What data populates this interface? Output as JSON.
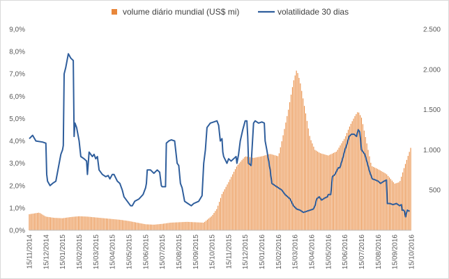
{
  "chart_data": {
    "type": "bar+line",
    "title": "",
    "colors": {
      "volume": "#E8873A",
      "volatility": "#2F5E9C",
      "axis": "#BFBFBF",
      "text": "#595959",
      "frame": "#D9D9D9"
    },
    "legend": {
      "placement": "top-center",
      "entries": [
        "volume diário mundial (US$ mi)",
        "volatilidade 30 dias"
      ]
    },
    "y_left": {
      "label": "",
      "min": 0,
      "max": 9,
      "step": 1,
      "ticks": [
        "0,0%",
        "1,0%",
        "2,0%",
        "3,0%",
        "4,0%",
        "5,0%",
        "6,0%",
        "7,0%",
        "8,0%",
        "9,0%"
      ]
    },
    "y_right": {
      "label": "",
      "min": 0,
      "max": 2500,
      "ticks": [
        500,
        1000,
        1500,
        2000,
        2500
      ],
      "tick_labels": [
        "500",
        "1.000",
        "1.500",
        "2.000",
        "2.500"
      ]
    },
    "x_labels": [
      "15/11/2014",
      "15/12/2014",
      "15/01/2015",
      "15/02/2015",
      "15/03/2015",
      "15/04/2015",
      "15/05/2015",
      "15/06/2015",
      "15/07/2015",
      "15/08/2015",
      "15/09/2015",
      "15/10/2015",
      "15/11/2015",
      "15/12/2015",
      "15/01/2016",
      "15/02/2016",
      "15/03/2016",
      "15/04/2016",
      "15/05/2016",
      "15/06/2016",
      "15/07/2016",
      "15/08/2016",
      "15/09/2016",
      "15/10/2016"
    ],
    "x_range_months": [
      0,
      23
    ],
    "volume_series": {
      "name": "volume diário mundial (US$ mi)",
      "bar_spacing_months": 0.08,
      "points": [
        [
          0,
          200
        ],
        [
          0.3,
          210
        ],
        [
          0.6,
          220
        ],
        [
          1,
          170
        ],
        [
          1.5,
          155
        ],
        [
          2,
          150
        ],
        [
          2.5,
          165
        ],
        [
          3,
          175
        ],
        [
          3.5,
          170
        ],
        [
          4,
          160
        ],
        [
          4.5,
          150
        ],
        [
          5,
          140
        ],
        [
          5.5,
          130
        ],
        [
          6,
          115
        ],
        [
          6.5,
          95
        ],
        [
          7,
          75
        ],
        [
          7.5,
          70
        ],
        [
          8,
          80
        ],
        [
          8.5,
          95
        ],
        [
          9,
          100
        ],
        [
          9.5,
          105
        ],
        [
          10,
          100
        ],
        [
          10.5,
          95
        ],
        [
          11,
          180
        ],
        [
          11.3,
          270
        ],
        [
          11.6,
          450
        ],
        [
          12,
          600
        ],
        [
          12.5,
          800
        ],
        [
          13,
          920
        ],
        [
          13.5,
          900
        ],
        [
          14,
          920
        ],
        [
          14.5,
          950
        ],
        [
          15,
          920
        ],
        [
          15.3,
          1200
        ],
        [
          15.6,
          1500
        ],
        [
          15.9,
          1850
        ],
        [
          16.1,
          2000
        ],
        [
          16.3,
          1850
        ],
        [
          16.6,
          1500
        ],
        [
          16.9,
          1150
        ],
        [
          17.2,
          1000
        ],
        [
          17.5,
          960
        ],
        [
          18,
          930
        ],
        [
          18.5,
          980
        ],
        [
          19,
          1150
        ],
        [
          19.3,
          1300
        ],
        [
          19.6,
          1420
        ],
        [
          19.8,
          1480
        ],
        [
          20,
          1400
        ],
        [
          20.3,
          1100
        ],
        [
          20.6,
          800
        ],
        [
          21,
          760
        ],
        [
          21.5,
          700
        ],
        [
          22,
          580
        ],
        [
          22.3,
          600
        ],
        [
          22.6,
          800
        ],
        [
          23,
          1050
        ]
      ]
    },
    "volatility_series": {
      "name": "volatilidade 30 dias",
      "points": [
        [
          0,
          4.1
        ],
        [
          0.2,
          4.25
        ],
        [
          0.4,
          4.0
        ],
        [
          0.8,
          3.95
        ],
        [
          1.0,
          3.9
        ],
        [
          1.05,
          2.5
        ],
        [
          1.1,
          2.2
        ],
        [
          1.25,
          2.0
        ],
        [
          1.4,
          2.1
        ],
        [
          1.6,
          2.2
        ],
        [
          1.8,
          3.0
        ],
        [
          1.9,
          3.4
        ],
        [
          2.0,
          3.6
        ],
        [
          2.05,
          3.8
        ],
        [
          2.1,
          7.0
        ],
        [
          2.2,
          7.3
        ],
        [
          2.35,
          7.9
        ],
        [
          2.5,
          7.7
        ],
        [
          2.65,
          7.6
        ],
        [
          2.7,
          4.2
        ],
        [
          2.75,
          4.8
        ],
        [
          2.85,
          4.6
        ],
        [
          3.0,
          4.0
        ],
        [
          3.1,
          3.3
        ],
        [
          3.3,
          3.2
        ],
        [
          3.45,
          3.1
        ],
        [
          3.5,
          2.5
        ],
        [
          3.6,
          3.5
        ],
        [
          3.8,
          3.3
        ],
        [
          3.9,
          3.4
        ],
        [
          4.0,
          3.2
        ],
        [
          4.1,
          3.3
        ],
        [
          4.2,
          2.7
        ],
        [
          4.4,
          2.5
        ],
        [
          4.6,
          2.4
        ],
        [
          4.75,
          2.45
        ],
        [
          4.85,
          2.3
        ],
        [
          5.0,
          2.5
        ],
        [
          5.1,
          2.5
        ],
        [
          5.3,
          2.2
        ],
        [
          5.45,
          2.1
        ],
        [
          5.6,
          1.8
        ],
        [
          5.7,
          1.5
        ],
        [
          5.9,
          1.3
        ],
        [
          6.1,
          1.1
        ],
        [
          6.2,
          1.1
        ],
        [
          6.35,
          1.3
        ],
        [
          6.6,
          1.4
        ],
        [
          6.85,
          1.6
        ],
        [
          7.0,
          1.9
        ],
        [
          7.05,
          2.1
        ],
        [
          7.1,
          2.7
        ],
        [
          7.3,
          2.7
        ],
        [
          7.5,
          2.55
        ],
        [
          7.7,
          2.7
        ],
        [
          7.85,
          2.6
        ],
        [
          7.95,
          2.0
        ],
        [
          8.0,
          1.95
        ],
        [
          8.2,
          1.95
        ],
        [
          8.25,
          3.9
        ],
        [
          8.4,
          4.0
        ],
        [
          8.55,
          4.05
        ],
        [
          8.75,
          4.0
        ],
        [
          8.9,
          3.0
        ],
        [
          9.0,
          2.9
        ],
        [
          9.1,
          2.1
        ],
        [
          9.2,
          1.9
        ],
        [
          9.35,
          1.3
        ],
        [
          9.55,
          1.2
        ],
        [
          9.75,
          1.1
        ],
        [
          9.9,
          1.2
        ],
        [
          10.2,
          1.3
        ],
        [
          10.4,
          1.55
        ],
        [
          10.5,
          3.0
        ],
        [
          10.6,
          3.6
        ],
        [
          10.7,
          4.6
        ],
        [
          10.9,
          4.8
        ],
        [
          11.1,
          4.85
        ],
        [
          11.3,
          4.9
        ],
        [
          11.4,
          4.7
        ],
        [
          11.5,
          4.0
        ],
        [
          11.6,
          4.1
        ],
        [
          11.65,
          3.5
        ],
        [
          11.7,
          3.3
        ],
        [
          11.9,
          3.0
        ],
        [
          12.0,
          3.2
        ],
        [
          12.15,
          3.1
        ],
        [
          12.3,
          3.2
        ],
        [
          12.45,
          3.3
        ],
        [
          12.5,
          3.0
        ],
        [
          12.6,
          3.4
        ],
        [
          12.7,
          4.0
        ],
        [
          12.85,
          4.5
        ],
        [
          13.0,
          4.9
        ],
        [
          13.1,
          4.9
        ],
        [
          13.15,
          4.2
        ],
        [
          13.2,
          3.0
        ],
        [
          13.35,
          2.9
        ],
        [
          13.5,
          4.8
        ],
        [
          13.6,
          4.9
        ],
        [
          13.8,
          4.8
        ],
        [
          14.0,
          4.85
        ],
        [
          14.15,
          4.8
        ],
        [
          14.2,
          4.0
        ],
        [
          14.3,
          3.6
        ],
        [
          14.5,
          2.7
        ],
        [
          14.6,
          2.1
        ],
        [
          14.8,
          2.0
        ],
        [
          15.0,
          1.9
        ],
        [
          15.2,
          1.8
        ],
        [
          15.4,
          1.6
        ],
        [
          15.55,
          1.5
        ],
        [
          15.7,
          1.4
        ],
        [
          15.9,
          1.1
        ],
        [
          16.1,
          0.95
        ],
        [
          16.3,
          0.9
        ],
        [
          16.5,
          0.8
        ],
        [
          16.7,
          0.85
        ],
        [
          16.9,
          0.9
        ],
        [
          17.1,
          0.95
        ],
        [
          17.2,
          1.1
        ],
        [
          17.3,
          1.4
        ],
        [
          17.45,
          1.5
        ],
        [
          17.6,
          1.35
        ],
        [
          17.8,
          1.45
        ],
        [
          17.95,
          1.5
        ],
        [
          18.0,
          1.6
        ],
        [
          18.15,
          1.6
        ],
        [
          18.25,
          2.4
        ],
        [
          18.4,
          2.5
        ],
        [
          18.6,
          2.8
        ],
        [
          18.7,
          2.8
        ],
        [
          18.9,
          3.3
        ],
        [
          19.0,
          3.6
        ],
        [
          19.1,
          3.8
        ],
        [
          19.25,
          4.2
        ],
        [
          19.4,
          4.3
        ],
        [
          19.55,
          4.3
        ],
        [
          19.7,
          4.2
        ],
        [
          19.8,
          4.5
        ],
        [
          19.9,
          4.4
        ],
        [
          20.0,
          3.6
        ],
        [
          20.1,
          3.5
        ],
        [
          20.2,
          3.4
        ],
        [
          20.35,
          3.0
        ],
        [
          20.5,
          2.6
        ],
        [
          20.65,
          2.3
        ],
        [
          20.85,
          2.25
        ],
        [
          21.0,
          2.2
        ],
        [
          21.15,
          2.1
        ],
        [
          21.35,
          2.2
        ],
        [
          21.5,
          2.25
        ],
        [
          21.55,
          1.2
        ],
        [
          21.7,
          1.2
        ],
        [
          21.9,
          1.15
        ],
        [
          22.1,
          1.2
        ],
        [
          22.3,
          1.1
        ],
        [
          22.4,
          1.15
        ],
        [
          22.45,
          0.9
        ],
        [
          22.55,
          0.9
        ],
        [
          22.6,
          0.8
        ],
        [
          22.65,
          0.6
        ],
        [
          22.75,
          0.9
        ],
        [
          22.9,
          0.85
        ]
      ]
    }
  }
}
